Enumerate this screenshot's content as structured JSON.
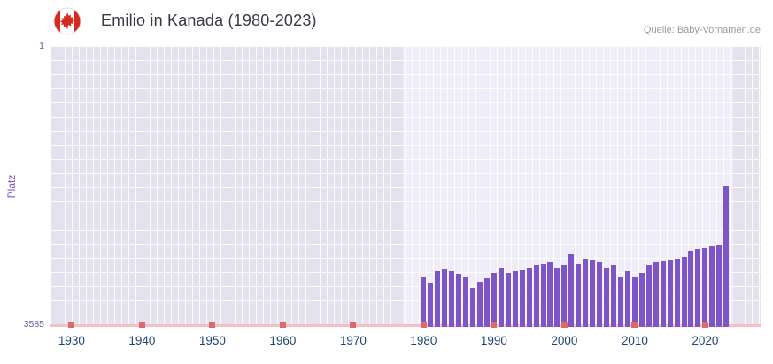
{
  "header": {
    "title": "Emilio in Kanada (1980-2023)",
    "source": "Quelle: Baby-Vornamen.de",
    "flag": "canada-flag"
  },
  "chart_data": {
    "type": "bar",
    "title": "Emilio in Kanada (1980-2023)",
    "xlabel": "",
    "ylabel": "Platz",
    "y_axis": {
      "top_label": "1",
      "bottom_label": "3585",
      "min": 1,
      "max": 3585,
      "inverted": true
    },
    "x_domain": [
      1927,
      2028
    ],
    "x_ticks": [
      1930,
      1940,
      1950,
      1960,
      1970,
      1980,
      1990,
      2000,
      2010,
      2020
    ],
    "highlight_band": [
      1977,
      2024
    ],
    "unranked_marker_years": [
      1930,
      1940,
      1950,
      1960,
      1970,
      1980,
      1990,
      2000,
      2010,
      2020
    ],
    "grid": true,
    "legend": "none",
    "series": [
      {
        "name": "Platz",
        "x": [
          1980,
          1981,
          1982,
          1983,
          1984,
          1985,
          1986,
          1987,
          1988,
          1989,
          1990,
          1991,
          1992,
          1993,
          1994,
          1995,
          1996,
          1997,
          1998,
          1999,
          2000,
          2001,
          2002,
          2003,
          2004,
          2005,
          2006,
          2007,
          2008,
          2009,
          2010,
          2011,
          2012,
          2013,
          2014,
          2015,
          2016,
          2017,
          2018,
          2019,
          2020,
          2021,
          2022,
          2023
        ],
        "values": [
          2950,
          3020,
          2880,
          2840,
          2880,
          2910,
          2950,
          3090,
          3010,
          2970,
          2900,
          2830,
          2900,
          2870,
          2860,
          2830,
          2800,
          2790,
          2760,
          2830,
          2800,
          2650,
          2790,
          2720,
          2730,
          2760,
          2830,
          2800,
          2940,
          2870,
          2950,
          2900,
          2800,
          2760,
          2740,
          2730,
          2720,
          2690,
          2620,
          2590,
          2580,
          2550,
          2540,
          1790
        ]
      }
    ],
    "colors": {
      "bar": "#7d55c6",
      "plot_bg": "#e5e2f0",
      "band_bg": "#efedf8",
      "grid": "#ffffff",
      "decade_marker": "#dc6a6a",
      "baseline": "#f2c0c6",
      "x_tick_text": "#1c4576",
      "y_tick_text": "#675a9e",
      "y_title_text": "#7a52c2"
    }
  }
}
